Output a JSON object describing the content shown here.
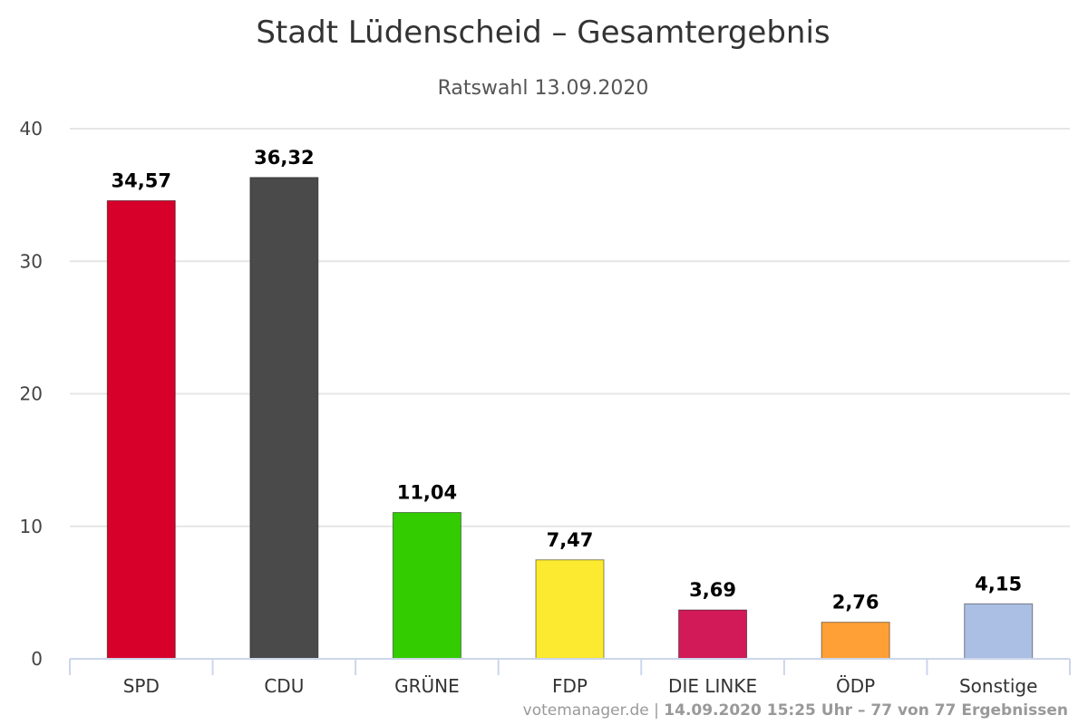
{
  "chart_data": {
    "type": "bar",
    "title": "Stadt Lüdenscheid – Gesamtergebnis",
    "subtitle": "Ratswahl 13.09.2020",
    "categories": [
      "SPD",
      "CDU",
      "GRÜNE",
      "FDP",
      "DIE LINKE",
      "ÖDP",
      "Sonstige"
    ],
    "values": [
      34.57,
      36.32,
      11.04,
      7.47,
      3.69,
      2.76,
      4.15
    ],
    "data_labels": [
      "34,57",
      "36,32",
      "11,04",
      "7,47",
      "3,69",
      "2,76",
      "4,15"
    ],
    "colors": [
      "#d6002a",
      "#4a4a4a",
      "#33cc00",
      "#fbea2f",
      "#d11a57",
      "#ffa036",
      "#abbee3"
    ],
    "ylim": [
      0,
      40
    ],
    "yticks": [
      0,
      10,
      20,
      30,
      40
    ],
    "grid": true,
    "legend": "none",
    "xlabel": "",
    "ylabel": ""
  },
  "credit": {
    "source": "votemanager.de",
    "separator": "|",
    "info": "14.09.2020 15:25 Uhr – 77 von 77 Ergebnissen"
  }
}
